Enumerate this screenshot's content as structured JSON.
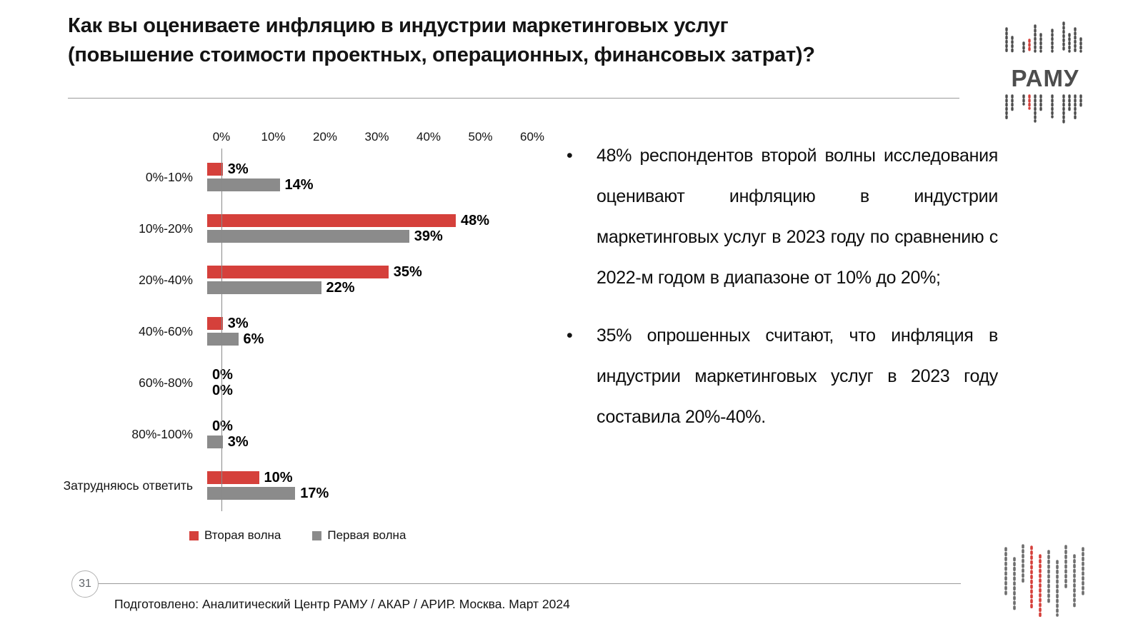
{
  "slide": {
    "title_lines": [
      "Как вы оцениваете инфляцию в индустрии маркетинговых услуг",
      "(повышение стоимости проектных, операционных, финансовых затрат)?"
    ],
    "page_number": "31",
    "footer": "Подготовлено: Аналитический Центр РАМУ / АКАР / АРИР. Москва. Март 2024",
    "logo_text": "РАМУ",
    "bullet_marker": "•"
  },
  "bullets": [
    "48% респондентов второй волны исследования оценивают инфляцию в индустрии маркетинговых услуг в 2023 году по сравнению с 2022-м годом в диапазоне от 10% до 20%;",
    "35% опрошенных считают, что инфляция в индустрии маркетинговых услуг в 2023 году составила 20%-40%."
  ],
  "chart_data": {
    "type": "bar",
    "orientation": "horizontal",
    "title": "",
    "categories": [
      "0%-10%",
      "10%-20%",
      "20%-40%",
      "40%-60%",
      "60%-80%",
      "80%-100%",
      "Затрудняюсь ответить"
    ],
    "series": [
      {
        "name": "Вторая волна",
        "color": "#d5403b",
        "values": [
          3,
          48,
          35,
          3,
          0,
          0,
          10
        ]
      },
      {
        "name": "Первая волна",
        "color": "#8b8b8b",
        "values": [
          14,
          39,
          22,
          6,
          0,
          3,
          17
        ]
      }
    ],
    "x_ticks": [
      "0%",
      "10%",
      "20%",
      "30%",
      "40%",
      "50%",
      "60%"
    ],
    "xlim": [
      0,
      60
    ],
    "value_suffix": "%",
    "legend_position": "bottom",
    "grid": false
  }
}
